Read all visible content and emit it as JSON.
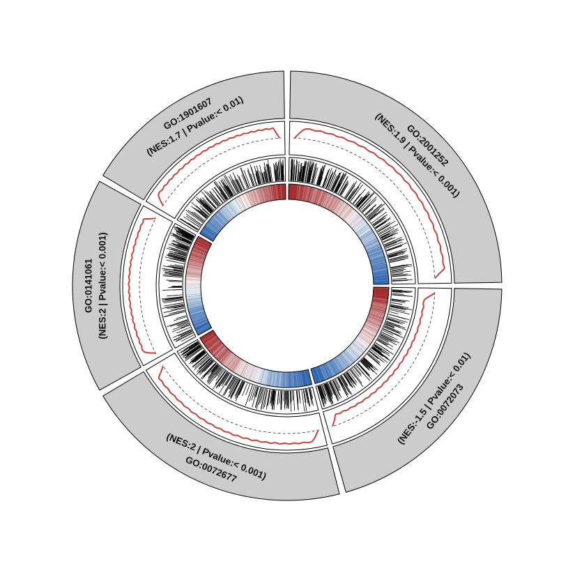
{
  "chart_data": {
    "type": "circular-gsea",
    "colors": {
      "header_fill": "#cccccc",
      "curve": "#c8403c",
      "positive": "#a32a2d",
      "negative": "#2f66b0",
      "neutral": "#f4f4f4",
      "tick": "#000000"
    },
    "sectors": [
      {
        "id": "GO:2001252",
        "nes": 1.9,
        "label_id": "GO:2001252",
        "label_stats": "(NES:1.9 | Pvalue:< 0.001)",
        "start_deg": 0,
        "end_deg": 90,
        "curve": "up",
        "rank_order": "pos-to-neg"
      },
      {
        "id": "GO:0072073",
        "nes": -1.5,
        "label_id": "GO:0072073",
        "label_stats": "(NES:-1.5 | Pvalue:< 0.01)",
        "start_deg": 90,
        "end_deg": 165,
        "curve": "down",
        "rank_order": "pos-to-neg"
      },
      {
        "id": "GO:0072677",
        "nes": 2,
        "label_id": "GO:0072677",
        "label_stats": "(NES:2 | Pvalue:< 0.001)",
        "start_deg": 165,
        "end_deg": 240,
        "curve": "up",
        "rank_order": "neg-to-pos"
      },
      {
        "id": "GO:0141061",
        "nes": 2,
        "label_id": "GO:0141061",
        "label_stats": "(NES:2 | Pvalue:< 0.001)",
        "start_deg": 240,
        "end_deg": 300,
        "curve": "up",
        "rank_order": "neg-to-pos"
      },
      {
        "id": "GO:1901607",
        "nes": 1.7,
        "label_id": "GO:1901607",
        "label_stats": "(NES:1.7 | Pvalue:< 0.01)",
        "start_deg": 300,
        "end_deg": 360,
        "curve": "up",
        "rank_order": "neg-to-pos"
      }
    ]
  }
}
